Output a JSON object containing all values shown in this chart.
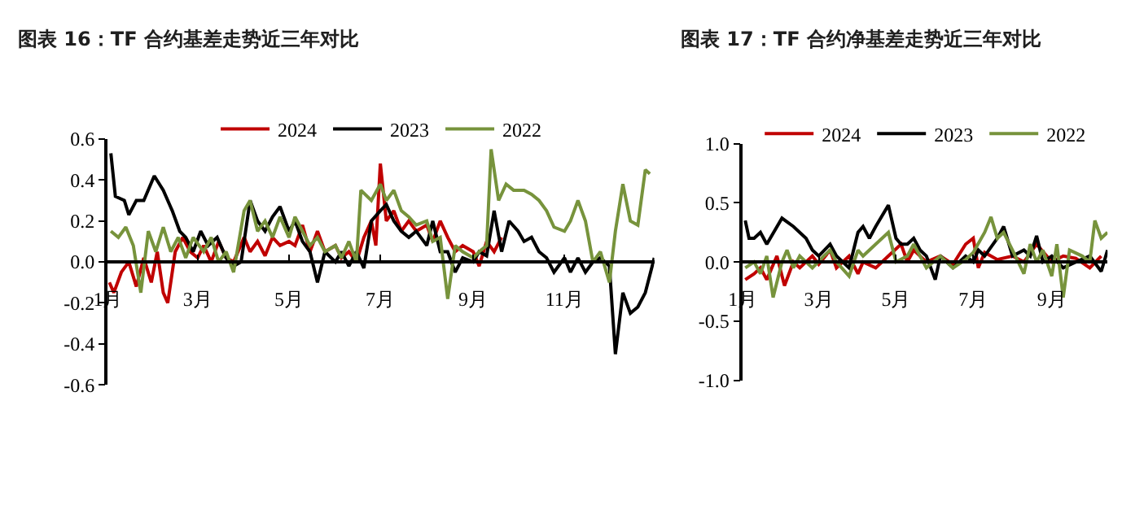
{
  "chart_data": [
    {
      "type": "line",
      "title": "图表 16：TF 合约基差走势近三年对比",
      "xlim": [
        "--01-01",
        "--12-31"
      ],
      "xticks": [
        {
          "value": "--01-01",
          "label": "1月"
        },
        {
          "value": "--03-01",
          "label": "3月"
        },
        {
          "value": "--05-01",
          "label": "5月"
        },
        {
          "value": "--07-01",
          "label": "7月"
        },
        {
          "value": "--09-01",
          "label": "9月"
        },
        {
          "value": "--11-01",
          "label": "11月"
        }
      ],
      "ylim": [
        -0.6,
        0.6
      ],
      "yticks": [
        {
          "value": -0.6,
          "label": "-0.6"
        },
        {
          "value": -0.4,
          "label": "-0.4"
        },
        {
          "value": -0.2,
          "label": "-0.2"
        },
        {
          "value": 0,
          "label": "0.0"
        },
        {
          "value": 0.2,
          "label": "0.2"
        },
        {
          "value": 0.4,
          "label": "0.4"
        },
        {
          "value": 0.6,
          "label": "0.6"
        }
      ],
      "legend": "top",
      "marker": "none",
      "line_style": "solid",
      "series": [
        {
          "name": "2024",
          "color": "#c00000",
          "x": [
            "--01-02",
            "--01-05",
            "--01-10",
            "--01-15",
            "--01-20",
            "--01-25",
            "--01-30",
            "--02-03",
            "--02-07",
            "--02-10",
            "--02-15",
            "--02-20",
            "--02-25",
            "--03-01",
            "--03-05",
            "--03-10",
            "--03-15",
            "--03-20",
            "--03-25",
            "--04-01",
            "--04-05",
            "--04-10",
            "--04-15",
            "--04-20",
            "--04-25",
            "--05-01",
            "--05-05",
            "--05-10",
            "--05-15",
            "--05-20",
            "--05-25",
            "--06-01",
            "--06-05",
            "--06-10",
            "--06-15",
            "--06-20",
            "--06-25",
            "--06-28",
            "--07-01",
            "--07-05",
            "--07-10",
            "--07-15",
            "--07-20",
            "--07-25",
            "--08-01",
            "--08-05",
            "--08-10",
            "--08-15",
            "--08-20",
            "--08-25",
            "--09-01",
            "--09-05",
            "--09-10",
            "--09-15",
            "--09-20"
          ],
          "values": [
            -0.1,
            -0.15,
            -0.05,
            0.0,
            -0.12,
            0.02,
            -0.1,
            0.05,
            -0.15,
            -0.2,
            0.05,
            0.12,
            0.05,
            0.02,
            0.08,
            0.0,
            0.1,
            0.02,
            0.0,
            0.12,
            0.05,
            0.1,
            0.03,
            0.12,
            0.08,
            0.1,
            0.08,
            0.18,
            0.05,
            0.15,
            0.05,
            0.08,
            0.02,
            0.05,
            0.0,
            0.12,
            0.2,
            0.08,
            0.48,
            0.2,
            0.25,
            0.15,
            0.2,
            0.15,
            0.18,
            0.1,
            0.2,
            0.12,
            0.05,
            0.08,
            0.05,
            -0.02,
            0.1,
            0.05,
            0.12
          ]
        },
        {
          "name": "2023",
          "color": "#000000",
          "x": [
            "--01-03",
            "--01-06",
            "--01-12",
            "--01-15",
            "--01-20",
            "--01-25",
            "--02-01",
            "--02-07",
            "--02-13",
            "--02-18",
            "--02-22",
            "--02-27",
            "--03-03",
            "--03-08",
            "--03-14",
            "--03-20",
            "--03-25",
            "--03-30",
            "--04-05",
            "--04-10",
            "--04-15",
            "--04-20",
            "--04-25",
            "--05-01",
            "--05-05",
            "--05-10",
            "--05-15",
            "--05-20",
            "--05-25",
            "--06-01",
            "--06-05",
            "--06-10",
            "--06-15",
            "--06-20",
            "--06-25",
            "--07-01",
            "--07-05",
            "--07-10",
            "--07-15",
            "--07-20",
            "--07-25",
            "--08-01",
            "--08-05",
            "--08-10",
            "--08-15",
            "--08-20",
            "--08-25",
            "--09-01",
            "--09-05",
            "--09-10",
            "--09-15",
            "--09-20",
            "--09-25",
            "--10-01",
            "--10-05",
            "--10-10",
            "--10-15",
            "--10-20",
            "--10-25",
            "--11-01",
            "--11-05",
            "--11-10",
            "--11-15",
            "--11-20",
            "--11-25",
            "--12-01",
            "--12-05",
            "--12-10",
            "--12-15",
            "--12-20",
            "--12-25",
            "--12-31"
          ],
          "values": [
            0.53,
            0.32,
            0.3,
            0.23,
            0.3,
            0.3,
            0.42,
            0.35,
            0.25,
            0.15,
            0.12,
            0.05,
            0.15,
            0.08,
            0.12,
            0.02,
            -0.02,
            0.0,
            0.3,
            0.2,
            0.15,
            0.22,
            0.27,
            0.15,
            0.2,
            0.1,
            0.05,
            -0.1,
            0.05,
            0.0,
            0.05,
            -0.02,
            0.05,
            -0.03,
            0.2,
            0.25,
            0.28,
            0.2,
            0.15,
            0.12,
            0.15,
            0.08,
            0.2,
            0.05,
            0.05,
            -0.05,
            0.02,
            0.0,
            0.05,
            0.03,
            0.25,
            0.05,
            0.2,
            0.15,
            0.1,
            0.12,
            0.05,
            0.02,
            -0.05,
            0.02,
            -0.05,
            0.02,
            -0.05,
            0.0,
            0.02,
            -0.02,
            -0.45,
            -0.15,
            -0.25,
            -0.22,
            -0.15,
            0.02
          ]
        },
        {
          "name": "2022",
          "color": "#77933c",
          "x": [
            "--01-03",
            "--01-08",
            "--01-13",
            "--01-18",
            "--01-23",
            "--01-28",
            "--02-02",
            "--02-07",
            "--02-12",
            "--02-17",
            "--02-22",
            "--02-27",
            "--03-05",
            "--03-10",
            "--03-15",
            "--03-20",
            "--03-25",
            "--04-01",
            "--04-05",
            "--04-10",
            "--04-15",
            "--04-20",
            "--04-25",
            "--05-01",
            "--05-05",
            "--05-10",
            "--05-15",
            "--05-20",
            "--05-25",
            "--06-01",
            "--06-05",
            "--06-10",
            "--06-15",
            "--06-18",
            "--06-25",
            "--07-01",
            "--07-05",
            "--07-10",
            "--07-15",
            "--07-20",
            "--07-25",
            "--08-01",
            "--08-05",
            "--08-10",
            "--08-15",
            "--08-20",
            "--08-25",
            "--09-01",
            "--09-05",
            "--09-10",
            "--09-13",
            "--09-18",
            "--09-23",
            "--09-28",
            "--10-05",
            "--10-10",
            "--10-15",
            "--10-20",
            "--10-25",
            "--11-01",
            "--11-05",
            "--11-10",
            "--11-15",
            "--11-20",
            "--11-25",
            "--12-01",
            "--12-05",
            "--12-10",
            "--12-15",
            "--12-20",
            "--12-25",
            "--12-28"
          ],
          "values": [
            0.15,
            0.12,
            0.17,
            0.08,
            -0.15,
            0.15,
            0.05,
            0.17,
            0.05,
            0.12,
            0.02,
            0.12,
            0.05,
            0.12,
            0.0,
            0.05,
            -0.05,
            0.25,
            0.3,
            0.15,
            0.2,
            0.12,
            0.22,
            0.12,
            0.22,
            0.15,
            0.08,
            0.12,
            0.05,
            0.08,
            0.02,
            0.1,
            0.0,
            0.35,
            0.3,
            0.38,
            0.3,
            0.35,
            0.25,
            0.22,
            0.18,
            0.2,
            0.1,
            0.12,
            -0.18,
            0.08,
            0.05,
            0.02,
            0.05,
            0.08,
            0.55,
            0.3,
            0.38,
            0.35,
            0.35,
            0.33,
            0.3,
            0.25,
            0.17,
            0.15,
            0.2,
            0.3,
            0.2,
            0.0,
            0.05,
            -0.1,
            0.15,
            0.38,
            0.2,
            0.18,
            0.45,
            0.43
          ]
        }
      ]
    },
    {
      "type": "line",
      "title": "图表 17：TF 合约净基差走势近三年对比",
      "xlim": [
        "--01-01",
        "--10-15"
      ],
      "xticks": [
        {
          "value": "--01-01",
          "label": "1月"
        },
        {
          "value": "--03-01",
          "label": "3月"
        },
        {
          "value": "--05-01",
          "label": "5月"
        },
        {
          "value": "--07-01",
          "label": "7月"
        },
        {
          "value": "--09-01",
          "label": "9月"
        }
      ],
      "ylim": [
        -1.0,
        1.0
      ],
      "yticks": [
        {
          "value": -1.0,
          "label": "-1.0"
        },
        {
          "value": -0.5,
          "label": "-0.5"
        },
        {
          "value": 0,
          "label": "0.0"
        },
        {
          "value": 0.5,
          "label": "0.5"
        },
        {
          "value": 1.0,
          "label": "1.0"
        }
      ],
      "legend": "top",
      "marker": "none",
      "line_style": "solid",
      "series": [
        {
          "name": "2024",
          "color": "#c00000",
          "x": [
            "--01-03",
            "--01-10",
            "--01-15",
            "--01-20",
            "--01-28",
            "--02-03",
            "--02-10",
            "--02-15",
            "--02-25",
            "--03-01",
            "--03-10",
            "--03-15",
            "--03-25",
            "--04-01",
            "--04-05",
            "--04-15",
            "--04-25",
            "--05-05",
            "--05-10",
            "--05-15",
            "--05-25",
            "--06-05",
            "--06-15",
            "--06-25",
            "--07-01",
            "--07-05",
            "--07-10",
            "--07-20",
            "--08-01",
            "--08-10",
            "--08-20",
            "--09-01",
            "--09-10",
            "--09-20",
            "--10-01",
            "--10-10"
          ],
          "values": [
            -0.15,
            -0.1,
            -0.05,
            -0.15,
            0.05,
            -0.2,
            0.0,
            -0.05,
            0.05,
            -0.02,
            0.1,
            -0.05,
            0.05,
            -0.1,
            0.0,
            -0.05,
            0.05,
            0.15,
            0.0,
            0.1,
            0.0,
            0.05,
            -0.02,
            0.15,
            0.2,
            -0.05,
            0.08,
            0.02,
            0.05,
            0.0,
            0.15,
            0.0,
            0.05,
            0.03,
            -0.05,
            0.05
          ]
        },
        {
          "name": "2023",
          "color": "#000000",
          "x": [
            "--01-03",
            "--01-06",
            "--01-10",
            "--01-15",
            "--01-20",
            "--02-01",
            "--02-10",
            "--02-20",
            "--02-25",
            "--03-01",
            "--03-10",
            "--03-15",
            "--03-25",
            "--04-01",
            "--04-05",
            "--04-10",
            "--04-15",
            "--04-25",
            "--05-01",
            "--05-05",
            "--05-10",
            "--05-15",
            "--05-20",
            "--05-25",
            "--06-01",
            "--06-05",
            "--06-15",
            "--06-25",
            "--07-01",
            "--07-05",
            "--07-10",
            "--07-20",
            "--07-25",
            "--08-01",
            "--08-10",
            "--08-15",
            "--08-20",
            "--08-25",
            "--09-01",
            "--09-10",
            "--09-20",
            "--10-01",
            "--10-10",
            "--10-15"
          ],
          "values": [
            0.35,
            0.2,
            0.2,
            0.25,
            0.15,
            0.37,
            0.3,
            0.2,
            0.1,
            0.05,
            0.15,
            0.05,
            -0.05,
            0.25,
            0.3,
            0.2,
            0.3,
            0.48,
            0.2,
            0.15,
            0.15,
            0.2,
            0.1,
            0.05,
            -0.15,
            0.05,
            -0.05,
            0.05,
            0.0,
            0.1,
            0.05,
            0.2,
            0.3,
            0.05,
            0.1,
            0.05,
            0.22,
            0.0,
            0.05,
            -0.05,
            0.0,
            0.05,
            -0.08,
            0.1
          ]
        },
        {
          "name": "2022",
          "color": "#77933c",
          "x": [
            "--01-03",
            "--01-10",
            "--01-15",
            "--01-20",
            "--01-25",
            "--02-01",
            "--02-05",
            "--02-10",
            "--02-15",
            "--02-25",
            "--03-05",
            "--03-10",
            "--03-15",
            "--03-25",
            "--04-01",
            "--04-05",
            "--04-15",
            "--04-25",
            "--05-01",
            "--05-10",
            "--05-15",
            "--05-25",
            "--06-05",
            "--06-15",
            "--06-25",
            "--07-01",
            "--07-10",
            "--07-15",
            "--07-20",
            "--07-25",
            "--08-01",
            "--08-10",
            "--08-15",
            "--08-20",
            "--08-25",
            "--09-01",
            "--09-05",
            "--09-10",
            "--09-15",
            "--09-25",
            "--10-01",
            "--10-05",
            "--10-10",
            "--10-15"
          ],
          "values": [
            -0.05,
            0.0,
            -0.1,
            0.05,
            -0.3,
            0.0,
            0.1,
            -0.05,
            0.05,
            -0.05,
            0.05,
            0.1,
            0.0,
            -0.12,
            0.1,
            0.05,
            0.15,
            0.25,
            0.0,
            0.05,
            0.15,
            -0.05,
            0.05,
            -0.05,
            0.02,
            0.08,
            0.25,
            0.38,
            0.2,
            0.25,
            0.1,
            -0.1,
            0.15,
            0.0,
            0.1,
            -0.12,
            0.15,
            -0.3,
            0.1,
            0.05,
            0.0,
            0.35,
            0.2,
            0.25
          ]
        }
      ]
    }
  ]
}
